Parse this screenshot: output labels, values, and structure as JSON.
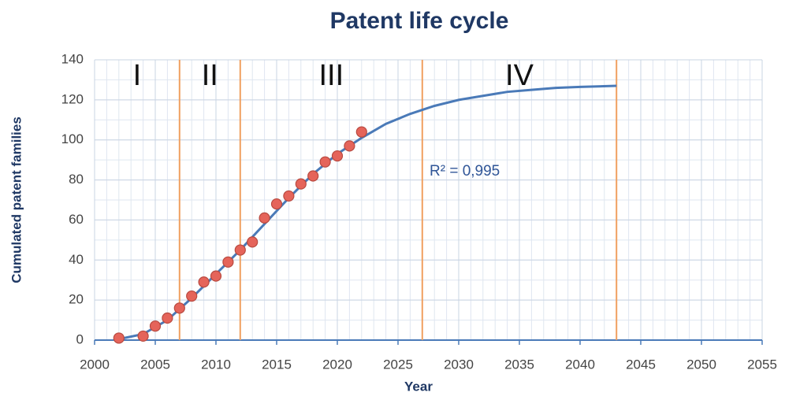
{
  "chart_data": {
    "type": "scatter",
    "title": "Patent life cycle",
    "x_label": "Year",
    "y_label": "Cumulated patent families",
    "xlim": [
      2000,
      2055
    ],
    "xticks": [
      2000,
      2005,
      2010,
      2015,
      2020,
      2025,
      2030,
      2035,
      2040,
      2045,
      2050,
      2055
    ],
    "ylim": [
      0,
      140
    ],
    "yticks": [
      0,
      20,
      40,
      60,
      80,
      100,
      120,
      140
    ],
    "grid": true,
    "minor_grid": true,
    "series": [
      {
        "name": "Cumulated patent families",
        "color": "#e5645a",
        "x": [
          2002,
          2004,
          2005,
          2006,
          2007,
          2008,
          2009,
          2010,
          2011,
          2012,
          2013,
          2014,
          2015,
          2016,
          2017,
          2018,
          2019,
          2020,
          2021,
          2022
        ],
        "values": [
          1,
          2,
          7,
          11,
          16,
          22,
          29,
          32,
          39,
          45,
          49,
          61,
          68,
          72,
          78,
          82,
          89,
          92,
          97,
          104
        ]
      },
      {
        "name": "Fit",
        "type": "line",
        "color": "#4a7ab8",
        "x": [
          2002,
          2004,
          2006,
          2008,
          2010,
          2012,
          2014,
          2016,
          2018,
          2020,
          2022,
          2024,
          2026,
          2028,
          2030,
          2032,
          2034,
          2036,
          2038,
          2040,
          2043
        ],
        "values": [
          0.5,
          3,
          10,
          21,
          33,
          45,
          58,
          71,
          83,
          93,
          101,
          108,
          113,
          117,
          120,
          122,
          124,
          125,
          126,
          126.5,
          127
        ]
      }
    ],
    "phase_boundaries": [
      2007,
      2012,
      2027,
      2043
    ],
    "phase_boundary_color": "#f0a060",
    "phases": [
      "I",
      "II",
      "III",
      "IV"
    ],
    "annotation": "R² = 0,995"
  }
}
